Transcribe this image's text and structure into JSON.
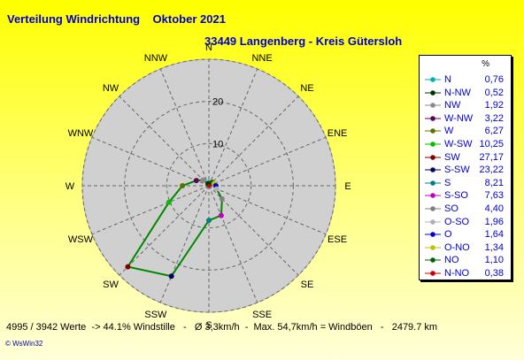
{
  "title": "Verteilung Windrichtung    Oktober 2021",
  "subtitle": "33449 Langenberg - Kreis Gütersloh",
  "footer": "4995 / 3942 Werte  -> 44.1% Windstille   -   Ø 3,3km/h  -  Max. 54,7km/h = Windböen   -   2479.7 km",
  "brand": "© WsWin32",
  "colors": {
    "title": "#0000cc",
    "polygon": "#008800",
    "dial": "#d0d0d0"
  },
  "chart_data": {
    "type": "radar",
    "directions": [
      "N",
      "NNO",
      "NO",
      "ONO",
      "O",
      "OSO",
      "SO",
      "SSO",
      "S",
      "SSW",
      "SW",
      "WSW",
      "W",
      "WNW",
      "NW",
      "NNW"
    ],
    "direction_labels": [
      "N",
      "NNE",
      "NE",
      "ENE",
      "E",
      "ESE",
      "SE",
      "SSE",
      "S",
      "SSW",
      "SW",
      "WSW",
      "W",
      "WNW",
      "NW",
      "NNW"
    ],
    "values": [
      0.76,
      0.38,
      1.1,
      1.34,
      1.64,
      1.96,
      4.4,
      7.63,
      8.21,
      23.22,
      27.17,
      10.25,
      6.27,
      3.22,
      1.92,
      0.52
    ],
    "rings": [
      10,
      20
    ],
    "ring_labels": [
      "10",
      "20"
    ],
    "rmax": 30,
    "legend_header": "%",
    "legend": [
      {
        "name": "N",
        "value": "0,76",
        "color": "#00b0b0"
      },
      {
        "name": "N-NW",
        "value": "0,52",
        "color": "#003300"
      },
      {
        "name": "NW",
        "value": "1,92",
        "color": "#8a8a8a"
      },
      {
        "name": "W-NW",
        "value": "3,22",
        "color": "#600060"
      },
      {
        "name": "W",
        "value": "6,27",
        "color": "#607000"
      },
      {
        "name": "W-SW",
        "value": "10,25",
        "color": "#00c000"
      },
      {
        "name": "SW",
        "value": "27,17",
        "color": "#800000"
      },
      {
        "name": "S-SW",
        "value": "23,22",
        "color": "#000060"
      },
      {
        "name": "S",
        "value": "8,21",
        "color": "#008080"
      },
      {
        "name": "S-SO",
        "value": "7,63",
        "color": "#c000c0"
      },
      {
        "name": "SO",
        "value": "4,40",
        "color": "#808080"
      },
      {
        "name": "O-SO",
        "value": "1,96",
        "color": "#b0b0b0"
      },
      {
        "name": "O",
        "value": "1,64",
        "color": "#0000cc"
      },
      {
        "name": "O-NO",
        "value": "1,34",
        "color": "#c0c000"
      },
      {
        "name": "NO",
        "value": "1,10",
        "color": "#006000"
      },
      {
        "name": "N-NO",
        "value": "0,38",
        "color": "#cc0000"
      }
    ]
  }
}
